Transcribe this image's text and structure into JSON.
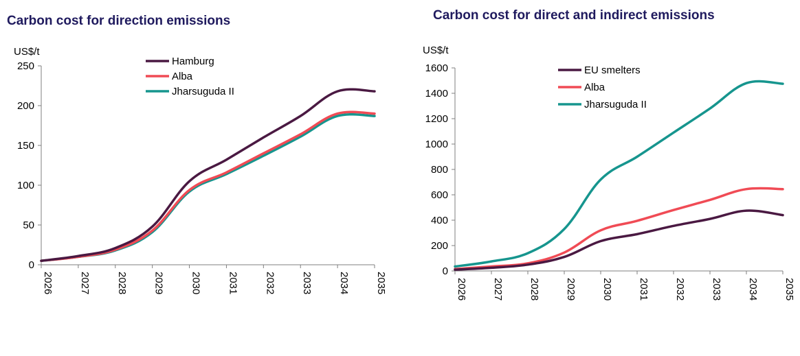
{
  "chart_data": [
    {
      "type": "line",
      "title": "Carbon cost for direction emissions",
      "ylabel": "US$/t",
      "xlabel": "",
      "ylim": [
        0,
        250
      ],
      "yticks": [
        0,
        50,
        100,
        150,
        200,
        250
      ],
      "categories": [
        "2026",
        "2027",
        "2028",
        "2029",
        "2030",
        "2031",
        "2032",
        "2033",
        "2034",
        "2035"
      ],
      "legend_position": "top-center",
      "grid": false,
      "series": [
        {
          "name": "Hamburg",
          "color": "#4a1942",
          "values": [
            5,
            11,
            21,
            48,
            105,
            132,
            160,
            187,
            218,
            218
          ]
        },
        {
          "name": "Alba",
          "color": "#f04b55",
          "values": [
            5,
            10,
            19,
            43,
            94,
            116,
            140,
            164,
            190,
            190
          ]
        },
        {
          "name": "Jharsuguda II",
          "color": "#16958e",
          "values": [
            5,
            10,
            18,
            41,
            92,
            114,
            137,
            161,
            187,
            187
          ]
        }
      ]
    },
    {
      "type": "line",
      "title": "Carbon cost for direct and indirect emissions",
      "ylabel": "US$/t",
      "xlabel": "",
      "ylim": [
        0,
        1600
      ],
      "yticks": [
        0,
        200,
        400,
        600,
        800,
        1000,
        1200,
        1400,
        1600
      ],
      "categories": [
        "2026",
        "2027",
        "2028",
        "2029",
        "2030",
        "2031",
        "2032",
        "2033",
        "2034",
        "2035"
      ],
      "legend_position": "top-left",
      "grid": false,
      "series": [
        {
          "name": "EU smelters",
          "color": "#4a1942",
          "values": [
            10,
            25,
            50,
            110,
            235,
            290,
            355,
            410,
            475,
            440
          ]
        },
        {
          "name": "Alba",
          "color": "#f04b55",
          "values": [
            15,
            35,
            60,
            145,
            320,
            395,
            480,
            560,
            645,
            645
          ]
        },
        {
          "name": "Jharsuguda II",
          "color": "#16958e",
          "values": [
            35,
            75,
            140,
            330,
            720,
            900,
            1090,
            1280,
            1480,
            1475
          ]
        }
      ]
    }
  ]
}
